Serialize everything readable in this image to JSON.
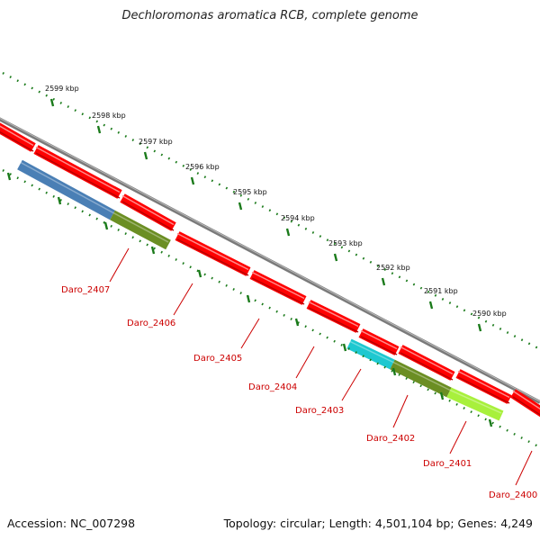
{
  "title": "Dechloromonas aromatica RCB, complete genome",
  "footer": {
    "accession": "Accession: NC_007298",
    "topology": "Topology: circular; Length: 4,501,104 bp; Genes: 4,249"
  },
  "ticks": [
    "2599 kbp",
    "2598 kbp",
    "2597 kbp",
    "2596 kbp",
    "2595 kbp",
    "2594 kbp",
    "2593 kbp",
    "2592 kbp",
    "2591 kbp",
    "2590 kbp"
  ],
  "genes": [
    "Daro_2407",
    "Daro_2406",
    "Daro_2405",
    "Daro_2404",
    "Daro_2403",
    "Daro_2402",
    "Daro_2401",
    "Daro_2400"
  ],
  "colors": {
    "cds": "#ff0000",
    "backbone": "#808080",
    "tick": "#1a7a1a",
    "label": "#cc0000",
    "blue": "#4a7fb5",
    "olive": "#6b8e23",
    "cyan": "#1ec8d0",
    "lime": "#a8f03c"
  }
}
